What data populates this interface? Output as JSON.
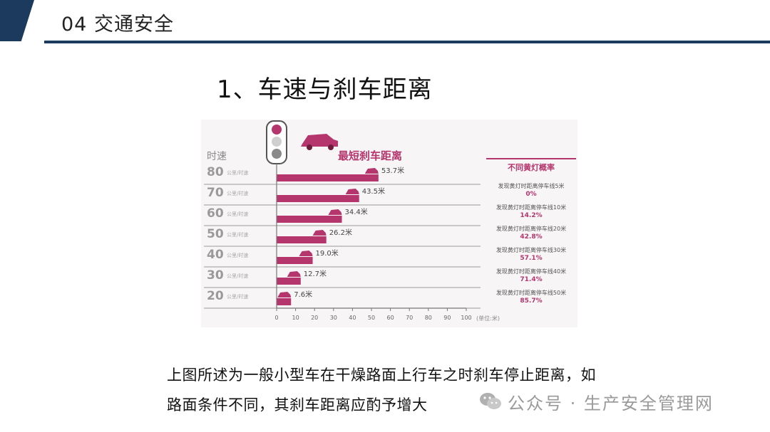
{
  "header": {
    "title": "04  交通安全"
  },
  "slide": {
    "title": "1、车速与刹车距离"
  },
  "chart_data": {
    "type": "bar",
    "title": "最短刹车距离",
    "ylabel": "时速",
    "unit_label": "(单位:米)",
    "categories": [
      {
        "speed": "80",
        "unit": "公里/时速"
      },
      {
        "speed": "70",
        "unit": "公里/时速"
      },
      {
        "speed": "60",
        "unit": "公里/时速"
      },
      {
        "speed": "50",
        "unit": "公里/时速"
      },
      {
        "speed": "40",
        "unit": "公里/时速"
      },
      {
        "speed": "30",
        "unit": "公里/时速"
      },
      {
        "speed": "20",
        "unit": "公里/时速"
      }
    ],
    "values": [
      53.7,
      43.5,
      34.4,
      26.2,
      19.0,
      12.7,
      7.6
    ],
    "data_labels": [
      "53.7米",
      "43.5米",
      "34.4米",
      "26.2米",
      "19.0米",
      "12.7米",
      "7.6米"
    ],
    "xlim": [
      0,
      100
    ],
    "xticks": [
      "0",
      "10",
      "20",
      "30",
      "40",
      "50",
      "60",
      "70",
      "80",
      "90",
      "100"
    ],
    "bar_color": "#b5356d",
    "side_panel": {
      "title": "不同黄灯概率",
      "items": [
        {
          "text": "发现黄灯时距离停车线5米",
          "pct": "0%"
        },
        {
          "text": "发现黄灯时距离停车线10米",
          "pct": "14.2%"
        },
        {
          "text": "发现黄灯时距离停车线20米",
          "pct": "42.8%"
        },
        {
          "text": "发现黄灯时距离停车线30米",
          "pct": "57.1%"
        },
        {
          "text": "发现黄灯时距离停车线40米",
          "pct": "71.4%"
        },
        {
          "text": "发现黄灯时距离停车线50米",
          "pct": "85.7%"
        }
      ]
    }
  },
  "caption": {
    "line1": "上图所述为一般小型车在干燥路面上行车之时刹车停止距离，如",
    "line2": "路面条件不同，其刹车距离应酌予增大"
  },
  "watermark": {
    "text": "公众号 · 生产安全管理网",
    "icon": "wechat-icon"
  }
}
